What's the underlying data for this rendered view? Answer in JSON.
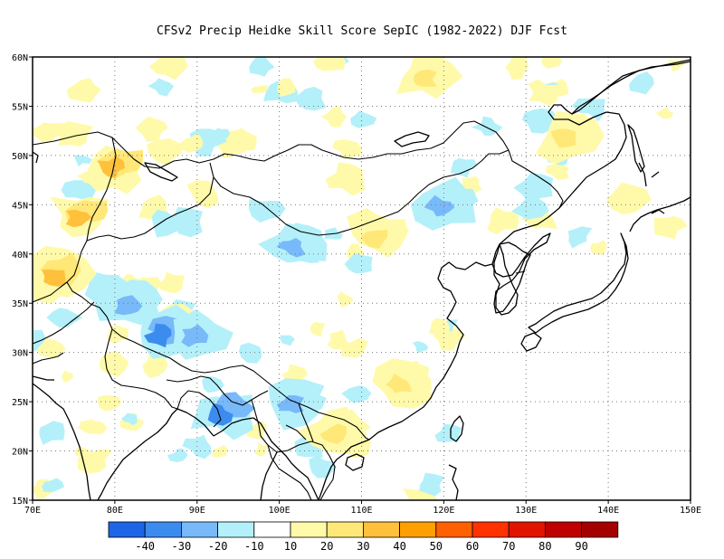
{
  "title": "CFSv2 Precip Heidke Skill Score SepIC (1982-2022) DJF Fcst",
  "map": {
    "lon_range": [
      70,
      150
    ],
    "lat_range": [
      15,
      60
    ],
    "lon_ticks": [
      "70E",
      "80E",
      "90E",
      "100E",
      "110E",
      "120E",
      "130E",
      "140E",
      "150E"
    ],
    "lat_ticks": [
      "15N",
      "20N",
      "25N",
      "30N",
      "35N",
      "40N",
      "45N",
      "50N",
      "55N",
      "60N"
    ],
    "gridlines": "dotted",
    "ocean_color": "#ffffff",
    "coastline_color": "#000000"
  },
  "colorbar": {
    "colors": [
      "#1e64e6",
      "#3c8cf0",
      "#78b9fa",
      "#b4f0fa",
      "#ffffff",
      "#fffaaa",
      "#ffe878",
      "#ffc03c",
      "#ffa000",
      "#ff6000",
      "#ff3200",
      "#e11400",
      "#c00000",
      "#a50000"
    ],
    "labels": [
      "-40",
      "-30",
      "-20",
      "-10",
      "10",
      "20",
      "30",
      "40",
      "50",
      "60",
      "70",
      "80",
      "90"
    ]
  },
  "chart_data": {
    "type": "heatmap",
    "title": "CFSv2 Precip Heidke Skill Score SepIC (1982-2022) DJF Fcst",
    "variable": "Heidke Skill Score",
    "x_range": [
      70,
      150
    ],
    "y_range": [
      15,
      60
    ],
    "contour_levels": [
      -40,
      -30,
      -20,
      -10,
      10,
      20,
      30,
      40,
      50,
      60,
      70,
      80,
      90
    ],
    "regions": [
      {
        "lon": 80,
        "lat": 49,
        "value": 30
      },
      {
        "lon": 76,
        "lat": 44,
        "value": 30
      },
      {
        "lon": 73,
        "lat": 38,
        "value": 30
      },
      {
        "lon": 82,
        "lat": 35,
        "value": -20
      },
      {
        "lon": 86,
        "lat": 32,
        "value": -30
      },
      {
        "lon": 90,
        "lat": 32,
        "value": -20
      },
      {
        "lon": 93,
        "lat": 24,
        "value": -30
      },
      {
        "lon": 102,
        "lat": 25,
        "value": -20
      },
      {
        "lon": 102,
        "lat": 41,
        "value": -20
      },
      {
        "lon": 120,
        "lat": 45,
        "value": -20
      },
      {
        "lon": 112,
        "lat": 42,
        "value": 20
      },
      {
        "lon": 115,
        "lat": 27,
        "value": 20
      },
      {
        "lon": 107,
        "lat": 22,
        "value": 20
      },
      {
        "lon": 118,
        "lat": 58,
        "value": 20
      },
      {
        "lon": 135,
        "lat": 52,
        "value": 20
      }
    ]
  }
}
